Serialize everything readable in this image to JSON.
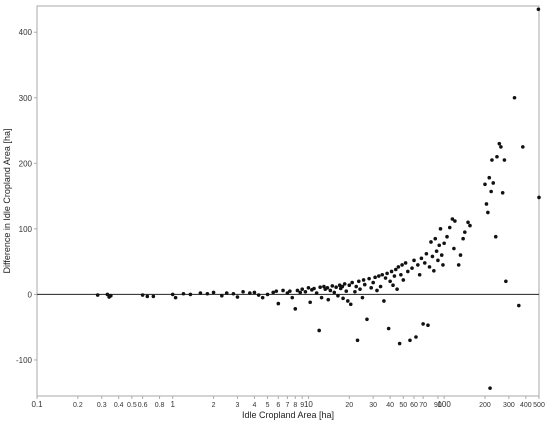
{
  "chart_data": {
    "type": "scatter",
    "xlabel": "Idle Cropland Area [ha]",
    "ylabel": "Difference in Idle Cropland Area [ha]",
    "x_scale": "log",
    "xlim": [
      0.1,
      500
    ],
    "ylim": [
      -155,
      440
    ],
    "x_ticks": [
      {
        "value": 0.1,
        "label": "0.1",
        "major": true
      },
      {
        "value": 0.2,
        "label": "0.2"
      },
      {
        "value": 0.3,
        "label": "0.3"
      },
      {
        "value": 0.4,
        "label": "0.4"
      },
      {
        "value": 0.5,
        "label": "0.5"
      },
      {
        "value": 0.6,
        "label": "0.6"
      },
      {
        "value": 0.8,
        "label": "0.8"
      },
      {
        "value": 1,
        "label": "1",
        "major": true
      },
      {
        "value": 2,
        "label": "2"
      },
      {
        "value": 3,
        "label": "3"
      },
      {
        "value": 4,
        "label": "4"
      },
      {
        "value": 5,
        "label": "5"
      },
      {
        "value": 6,
        "label": "6"
      },
      {
        "value": 7,
        "label": "7"
      },
      {
        "value": 8,
        "label": "8"
      },
      {
        "value": 9,
        "label": "9"
      },
      {
        "value": 10,
        "label": "10",
        "major": true
      },
      {
        "value": 20,
        "label": "20"
      },
      {
        "value": 30,
        "label": "30"
      },
      {
        "value": 40,
        "label": "40"
      },
      {
        "value": 50,
        "label": "50"
      },
      {
        "value": 60,
        "label": "60"
      },
      {
        "value": 70,
        "label": "70"
      },
      {
        "value": 90,
        "label": "90"
      },
      {
        "value": 100,
        "label": "100",
        "major": true
      },
      {
        "value": 200,
        "label": "200"
      },
      {
        "value": 300,
        "label": "300"
      },
      {
        "value": 400,
        "label": "400"
      },
      {
        "value": 500,
        "label": "500"
      }
    ],
    "y_ticks": [
      {
        "value": -100,
        "label": "-100"
      },
      {
        "value": 0,
        "label": "0"
      },
      {
        "value": 100,
        "label": "100"
      },
      {
        "value": 200,
        "label": "200"
      },
      {
        "value": 300,
        "label": "300"
      },
      {
        "value": 400,
        "label": "400"
      }
    ],
    "zero_line": true,
    "grid": false,
    "colors": {
      "points": "#111111",
      "axes": "#aaaaaa",
      "zero_line": "#222222"
    },
    "points": [
      [
        0.28,
        -1
      ],
      [
        0.33,
        0
      ],
      [
        0.34,
        -4
      ],
      [
        0.35,
        -2
      ],
      [
        0.6,
        -1
      ],
      [
        0.65,
        -3
      ],
      [
        0.72,
        -3
      ],
      [
        1.0,
        0
      ],
      [
        1.05,
        -5
      ],
      [
        1.2,
        1
      ],
      [
        1.35,
        0
      ],
      [
        1.6,
        2
      ],
      [
        1.8,
        1
      ],
      [
        2.0,
        3
      ],
      [
        2.3,
        -2
      ],
      [
        2.5,
        2
      ],
      [
        2.8,
        1
      ],
      [
        3.0,
        -4
      ],
      [
        3.3,
        4
      ],
      [
        3.7,
        2
      ],
      [
        4.0,
        3
      ],
      [
        4.3,
        -1
      ],
      [
        4.6,
        -5
      ],
      [
        5.0,
        0
      ],
      [
        5.5,
        3
      ],
      [
        5.8,
        5
      ],
      [
        6.0,
        -14
      ],
      [
        6.5,
        6
      ],
      [
        7.0,
        2
      ],
      [
        7.3,
        5
      ],
      [
        7.6,
        -5
      ],
      [
        8.0,
        -22
      ],
      [
        8.3,
        6
      ],
      [
        8.7,
        3
      ],
      [
        9.0,
        8
      ],
      [
        9.5,
        4
      ],
      [
        10.0,
        10
      ],
      [
        10.3,
        -12
      ],
      [
        10.6,
        7
      ],
      [
        11.0,
        9
      ],
      [
        11.5,
        2
      ],
      [
        12.0,
        -55
      ],
      [
        12.2,
        11
      ],
      [
        12.5,
        -5
      ],
      [
        13.0,
        12
      ],
      [
        13.3,
        8
      ],
      [
        13.8,
        10
      ],
      [
        14.0,
        -8
      ],
      [
        14.5,
        6
      ],
      [
        15.0,
        13
      ],
      [
        15.5,
        3
      ],
      [
        16.0,
        11
      ],
      [
        16.5,
        -2
      ],
      [
        17.0,
        14
      ],
      [
        17.3,
        9
      ],
      [
        17.8,
        12
      ],
      [
        18.0,
        -6
      ],
      [
        18.5,
        16
      ],
      [
        19.0,
        5
      ],
      [
        19.5,
        -10
      ],
      [
        20.0,
        14
      ],
      [
        20.5,
        -15
      ],
      [
        21.0,
        18
      ],
      [
        22.0,
        4
      ],
      [
        22.5,
        12
      ],
      [
        23.0,
        -70
      ],
      [
        23.5,
        20
      ],
      [
        24.0,
        8
      ],
      [
        25.0,
        -5
      ],
      [
        25.5,
        22
      ],
      [
        26.0,
        15
      ],
      [
        27.0,
        -38
      ],
      [
        28.0,
        24
      ],
      [
        29.0,
        10
      ],
      [
        30.0,
        18
      ],
      [
        31.0,
        26
      ],
      [
        32.0,
        6
      ],
      [
        33.0,
        28
      ],
      [
        34.0,
        12
      ],
      [
        35.0,
        30
      ],
      [
        36.0,
        -10
      ],
      [
        37.0,
        25
      ],
      [
        38.0,
        32
      ],
      [
        39.0,
        -52
      ],
      [
        40.0,
        20
      ],
      [
        41.0,
        35
      ],
      [
        42.0,
        14
      ],
      [
        43.0,
        28
      ],
      [
        44.0,
        38
      ],
      [
        45.0,
        8
      ],
      [
        46.0,
        42
      ],
      [
        47.0,
        -75
      ],
      [
        48.0,
        30
      ],
      [
        49.0,
        45
      ],
      [
        50.0,
        22
      ],
      [
        52.0,
        48
      ],
      [
        54.0,
        35
      ],
      [
        56.0,
        -70
      ],
      [
        58.0,
        40
      ],
      [
        60.0,
        52
      ],
      [
        62.0,
        -65
      ],
      [
        64.0,
        45
      ],
      [
        66.0,
        30
      ],
      [
        68.0,
        55
      ],
      [
        70.0,
        -45
      ],
      [
        72.0,
        48
      ],
      [
        74.0,
        62
      ],
      [
        76.0,
        -47
      ],
      [
        78.0,
        42
      ],
      [
        80.0,
        80
      ],
      [
        82.0,
        58
      ],
      [
        84.0,
        36
      ],
      [
        86.0,
        85
      ],
      [
        88.0,
        66
      ],
      [
        90.0,
        52
      ],
      [
        92.0,
        75
      ],
      [
        94.0,
        100
      ],
      [
        96.0,
        60
      ],
      [
        98.0,
        45
      ],
      [
        100.0,
        78
      ],
      [
        105.0,
        88
      ],
      [
        110.0,
        102
      ],
      [
        115.0,
        115
      ],
      [
        118.0,
        70
      ],
      [
        120.0,
        112
      ],
      [
        128.0,
        45
      ],
      [
        132.0,
        60
      ],
      [
        138.0,
        85
      ],
      [
        142.0,
        95
      ],
      [
        150.0,
        110
      ],
      [
        155.0,
        105
      ],
      [
        200.0,
        168
      ],
      [
        205.0,
        138
      ],
      [
        210.0,
        125
      ],
      [
        215.0,
        178
      ],
      [
        218.0,
        -143
      ],
      [
        222.0,
        157
      ],
      [
        225.0,
        205
      ],
      [
        230.0,
        170
      ],
      [
        240.0,
        88
      ],
      [
        245.0,
        210
      ],
      [
        255.0,
        230
      ],
      [
        262.0,
        225
      ],
      [
        270.0,
        155
      ],
      [
        278.0,
        205
      ],
      [
        285.0,
        20
      ],
      [
        330.0,
        300
      ],
      [
        355.0,
        -17
      ],
      [
        380.0,
        225
      ],
      [
        495.0,
        435
      ],
      [
        500.0,
        148
      ]
    ]
  }
}
